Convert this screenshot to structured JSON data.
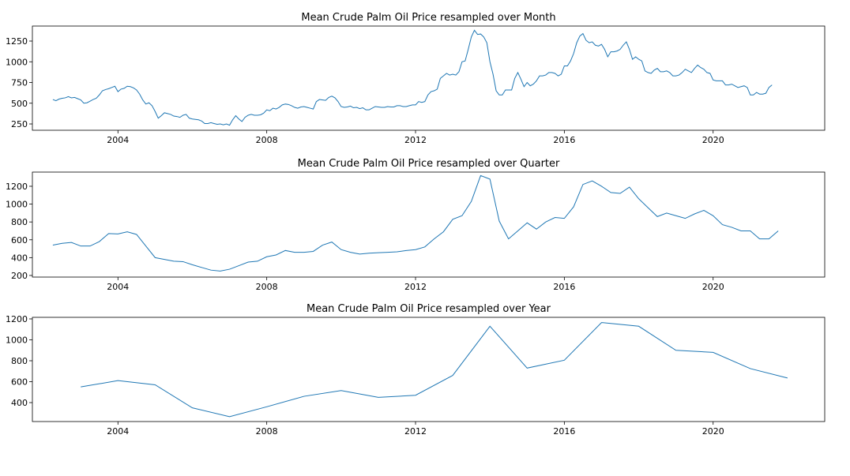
{
  "chart_data": [
    {
      "type": "line",
      "title": "Mean Crude Palm Oil Price resampled over Month",
      "color": "#1f77b4",
      "xlim": [
        2001.7,
        2023.0
      ],
      "ylim": [
        174,
        1431
      ],
      "xticks": [
        2004,
        2008,
        2012,
        2016,
        2020
      ],
      "yticks": [
        250,
        500,
        750,
        1000,
        1250
      ],
      "x": [
        2002.25,
        2002.333,
        2002.417,
        2002.5,
        2002.583,
        2002.667,
        2002.75,
        2002.833,
        2002.917,
        2003.0,
        2003.083,
        2003.167,
        2003.25,
        2003.333,
        2003.417,
        2003.5,
        2003.583,
        2003.667,
        2003.75,
        2003.833,
        2003.917,
        2004.0,
        2004.083,
        2004.167,
        2004.25,
        2004.333,
        2004.417,
        2004.5,
        2004.583,
        2004.667,
        2004.75,
        2004.833,
        2004.917,
        2005.0,
        2005.083,
        2005.167,
        2005.25,
        2005.333,
        2005.417,
        2005.5,
        2005.583,
        2005.667,
        2005.75,
        2005.833,
        2005.917,
        2006.0,
        2006.083,
        2006.167,
        2006.25,
        2006.333,
        2006.417,
        2006.5,
        2006.583,
        2006.667,
        2006.75,
        2006.833,
        2006.917,
        2007.0,
        2007.083,
        2007.167,
        2007.25,
        2007.333,
        2007.417,
        2007.5,
        2007.583,
        2007.667,
        2007.75,
        2007.833,
        2007.917,
        2008.0,
        2008.083,
        2008.167,
        2008.25,
        2008.333,
        2008.417,
        2008.5,
        2008.583,
        2008.667,
        2008.75,
        2008.833,
        2008.917,
        2009.0,
        2009.083,
        2009.167,
        2009.25,
        2009.333,
        2009.417,
        2009.5,
        2009.583,
        2009.667,
        2009.75,
        2009.833,
        2009.917,
        2010.0,
        2010.083,
        2010.167,
        2010.25,
        2010.333,
        2010.417,
        2010.5,
        2010.583,
        2010.667,
        2010.75,
        2010.833,
        2010.917,
        2011.0,
        2011.083,
        2011.167,
        2011.25,
        2011.333,
        2011.417,
        2011.5,
        2011.583,
        2011.667,
        2011.75,
        2011.833,
        2011.917,
        2012.0,
        2012.083,
        2012.167,
        2012.25,
        2012.333,
        2012.417,
        2012.5,
        2012.583,
        2012.667,
        2012.75,
        2012.833,
        2012.917,
        2013.0,
        2013.083,
        2013.167,
        2013.25,
        2013.333,
        2013.417,
        2013.5,
        2013.583,
        2013.667,
        2013.75,
        2013.833,
        2013.917,
        2014.0,
        2014.083,
        2014.167,
        2014.25,
        2014.333,
        2014.417,
        2014.5,
        2014.583,
        2014.667,
        2014.75,
        2014.833,
        2014.917,
        2015.0,
        2015.083,
        2015.167,
        2015.25,
        2015.333,
        2015.417,
        2015.5,
        2015.583,
        2015.667,
        2015.75,
        2015.833,
        2015.917,
        2016.0,
        2016.083,
        2016.167,
        2016.25,
        2016.333,
        2016.417,
        2016.5,
        2016.583,
        2016.667,
        2016.75,
        2016.833,
        2016.917,
        2017.0,
        2017.083,
        2017.167,
        2017.25,
        2017.333,
        2017.417,
        2017.5,
        2017.583,
        2017.667,
        2017.75,
        2017.833,
        2017.917,
        2018.0,
        2018.083,
        2018.167,
        2018.25,
        2018.333,
        2018.417,
        2018.5,
        2018.583,
        2018.667,
        2018.75,
        2018.833,
        2018.917,
        2019.0,
        2019.083,
        2019.167,
        2019.25,
        2019.333,
        2019.417,
        2019.5,
        2019.583,
        2019.667,
        2019.75,
        2019.833,
        2019.917,
        2020.0,
        2020.083,
        2020.167,
        2020.25,
        2020.333,
        2020.417,
        2020.5,
        2020.583,
        2020.667,
        2020.75,
        2020.833,
        2020.917,
        2021.0,
        2021.083,
        2021.167,
        2021.25,
        2021.333,
        2021.417,
        2021.5,
        2021.583
      ],
      "values": [
        545,
        530,
        550,
        560,
        565,
        580,
        565,
        570,
        555,
        540,
        500,
        505,
        525,
        545,
        560,
        600,
        650,
        665,
        675,
        690,
        705,
        640,
        670,
        680,
        705,
        700,
        685,
        660,
        610,
        540,
        490,
        505,
        470,
        400,
        320,
        350,
        385,
        375,
        365,
        345,
        340,
        330,
        355,
        365,
        320,
        310,
        305,
        300,
        285,
        255,
        255,
        265,
        255,
        245,
        250,
        240,
        250,
        235,
        300,
        350,
        310,
        280,
        330,
        355,
        365,
        355,
        355,
        360,
        380,
        420,
        410,
        440,
        430,
        450,
        480,
        490,
        485,
        470,
        450,
        440,
        455,
        460,
        450,
        440,
        430,
        520,
        545,
        540,
        535,
        570,
        585,
        565,
        520,
        460,
        450,
        455,
        465,
        445,
        450,
        435,
        445,
        420,
        420,
        440,
        460,
        455,
        450,
        450,
        460,
        455,
        455,
        470,
        470,
        460,
        460,
        470,
        480,
        480,
        520,
        510,
        520,
        600,
        640,
        650,
        670,
        800,
        830,
        860,
        840,
        850,
        840,
        880,
        1000,
        1010,
        1150,
        1300,
        1380,
        1330,
        1335,
        1300,
        1230,
        1000,
        850,
        650,
        600,
        600,
        660,
        660,
        660,
        800,
        870,
        790,
        700,
        750,
        710,
        730,
        770,
        830,
        830,
        840,
        870,
        870,
        860,
        830,
        850,
        950,
        950,
        1010,
        1100,
        1230,
        1310,
        1340,
        1260,
        1230,
        1240,
        1200,
        1190,
        1210,
        1150,
        1060,
        1120,
        1120,
        1130,
        1150,
        1200,
        1240,
        1150,
        1030,
        1060,
        1030,
        1010,
        890,
        870,
        860,
        900,
        920,
        880,
        880,
        890,
        870,
        830,
        830,
        840,
        870,
        910,
        890,
        870,
        920,
        960,
        930,
        910,
        870,
        860,
        780,
        770,
        770,
        770,
        720,
        720,
        730,
        710,
        690,
        700,
        710,
        690,
        600,
        600,
        630,
        610,
        610,
        620,
        690,
        720
      ]
    },
    {
      "type": "line",
      "title": "Mean Crude Palm Oil Price resampled over Quarter",
      "color": "#1f77b4",
      "xlim": [
        2001.7,
        2023.0
      ],
      "ylim": [
        182,
        1359
      ],
      "xticks": [
        2004,
        2008,
        2012,
        2016,
        2020
      ],
      "yticks": [
        200,
        400,
        600,
        800,
        1000,
        1200
      ],
      "x": [
        2002.25,
        2002.5,
        2002.75,
        2003.0,
        2003.25,
        2003.5,
        2003.75,
        2004.0,
        2004.25,
        2004.5,
        2004.75,
        2005.0,
        2005.25,
        2005.5,
        2005.75,
        2006.0,
        2006.25,
        2006.5,
        2006.75,
        2007.0,
        2007.25,
        2007.5,
        2007.75,
        2008.0,
        2008.25,
        2008.5,
        2008.75,
        2009.0,
        2009.25,
        2009.5,
        2009.75,
        2010.0,
        2010.25,
        2010.5,
        2010.75,
        2011.0,
        2011.25,
        2011.5,
        2011.75,
        2012.0,
        2012.25,
        2012.5,
        2012.75,
        2013.0,
        2013.25,
        2013.5,
        2013.75,
        2014.0,
        2014.25,
        2014.5,
        2014.75,
        2015.0,
        2015.25,
        2015.5,
        2015.75,
        2016.0,
        2016.25,
        2016.5,
        2016.75,
        2017.0,
        2017.25,
        2017.5,
        2017.75,
        2018.0,
        2018.25,
        2018.5,
        2018.75,
        2019.0,
        2019.25,
        2019.5,
        2019.75,
        2020.0,
        2020.25,
        2020.5,
        2020.75,
        2021.0,
        2021.25,
        2021.5,
        2021.75
      ],
      "values": [
        540,
        560,
        570,
        530,
        530,
        580,
        670,
        665,
        690,
        660,
        530,
        400,
        380,
        360,
        355,
        320,
        290,
        260,
        250,
        270,
        310,
        350,
        360,
        410,
        430,
        480,
        460,
        460,
        470,
        540,
        575,
        490,
        460,
        440,
        450,
        455,
        460,
        465,
        480,
        490,
        520,
        610,
        690,
        830,
        870,
        1030,
        1320,
        1280,
        810,
        610,
        700,
        790,
        720,
        800,
        850,
        840,
        970,
        1220,
        1260,
        1200,
        1130,
        1120,
        1190,
        1060,
        960,
        860,
        900,
        870,
        840,
        890,
        930,
        870,
        770,
        740,
        700,
        700,
        610,
        610,
        700
      ]
    },
    {
      "type": "line",
      "title": "Mean Crude Palm Oil Price resampled over Year",
      "color": "#1f77b4",
      "xlim": [
        2001.7,
        2023.0
      ],
      "ylim": [
        219,
        1215
      ],
      "xticks": [
        2004,
        2008,
        2012,
        2016,
        2020
      ],
      "yticks": [
        400,
        600,
        800,
        1000,
        1200
      ],
      "x": [
        2003,
        2004,
        2005,
        2006,
        2007,
        2008,
        2009,
        2010,
        2011,
        2012,
        2013,
        2014,
        2015,
        2016,
        2017,
        2018,
        2019,
        2020,
        2021,
        2022
      ],
      "values": [
        550,
        610,
        570,
        350,
        265,
        360,
        460,
        515,
        450,
        470,
        660,
        1130,
        730,
        805,
        1165,
        1130,
        900,
        880,
        725,
        635
      ]
    }
  ]
}
